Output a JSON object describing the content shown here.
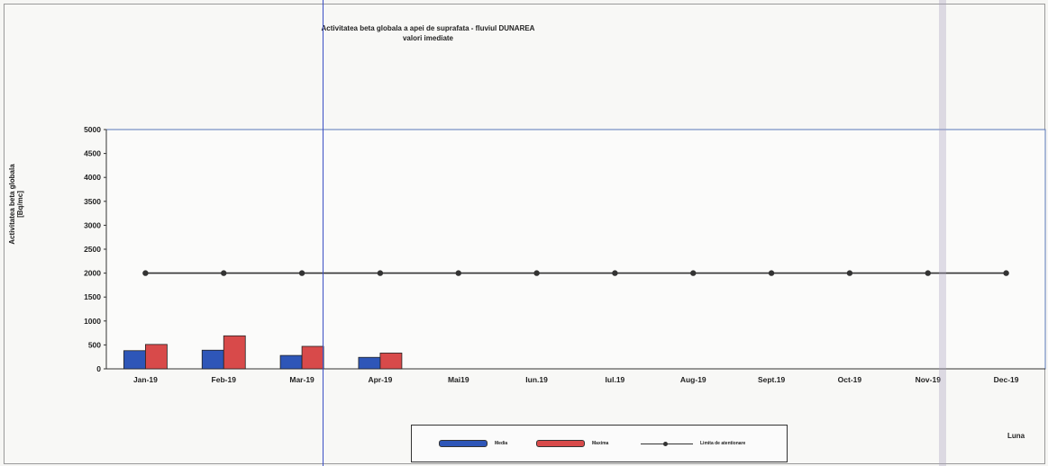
{
  "chart_data": {
    "type": "bar",
    "title": "Activitatea beta globala a apei de suprafata - fluviul DUNAREA",
    "subtitle": "valori imediate",
    "xlabel": "Luna",
    "ylabel": "Activitatea beta globala [Bq/mc]",
    "ylim": [
      0,
      5000
    ],
    "yticks": [
      "0",
      "500",
      "1000",
      "1500",
      "2000",
      "2500",
      "3000",
      "3500",
      "4000",
      "4500",
      "5000"
    ],
    "categories": [
      "Jan-19",
      "Feb-19",
      "Mar-19",
      "Apr-19",
      "Mai19",
      "Iun.19",
      "Iul.19",
      "Aug-19",
      "Sept.19",
      "Oct-19",
      "Nov-19",
      "Dec-19"
    ],
    "series": [
      {
        "name": "Media",
        "type": "bar",
        "color": "#2e56b8",
        "values": [
          380,
          390,
          280,
          240,
          null,
          null,
          null,
          null,
          null,
          null,
          null,
          null
        ]
      },
      {
        "name": "Maxima",
        "type": "bar",
        "color": "#d84a4a",
        "values": [
          510,
          690,
          470,
          330,
          null,
          null,
          null,
          null,
          null,
          null,
          null,
          null
        ]
      },
      {
        "name": "Limita de atentionare",
        "type": "line",
        "color": "#333333",
        "values": [
          2000,
          2000,
          2000,
          2000,
          2000,
          2000,
          2000,
          2000,
          2000,
          2000,
          2000,
          2000
        ]
      }
    ],
    "grid": false,
    "legend_position": "bottom"
  }
}
